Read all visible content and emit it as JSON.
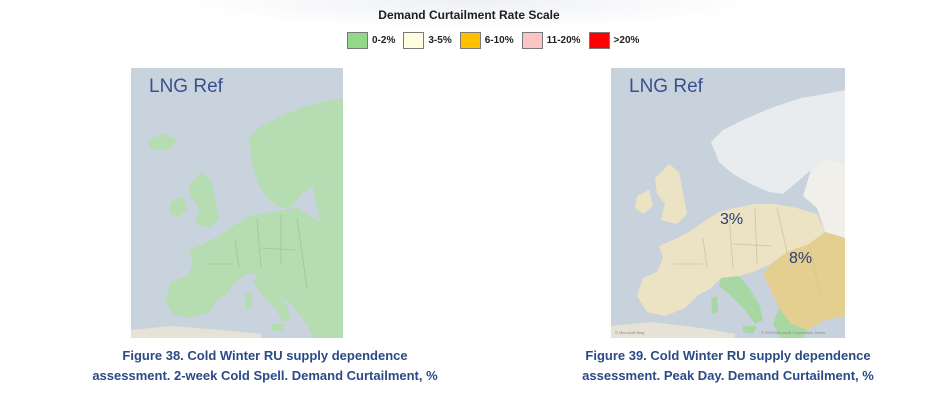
{
  "legend": {
    "title": "Demand Curtailment Rate Scale",
    "items": [
      {
        "label": "0-2%",
        "color": "#92d78a"
      },
      {
        "label": "3-5%",
        "color": "#fffde0"
      },
      {
        "label": "6-10%",
        "color": "#ffc000"
      },
      {
        "label": "11-20%",
        "color": "#fbc5c5"
      },
      {
        "label": ">20%",
        "color": "#ff0000"
      }
    ]
  },
  "maps": [
    {
      "title": "LNG Ref",
      "fill_color": "#b6dcb2",
      "sea_color": "#c5d0db",
      "caption_line1": "Figure 38. Cold Winter RU supply dependence",
      "caption_line2": "assessment. 2-week Cold Spell. Demand Curtailment, %"
    },
    {
      "title": "LNG Ref",
      "fill_color": "#ece2c4",
      "highlight_color": "#e4cf90",
      "label_west": "3%",
      "label_southeast": "8%",
      "attribution_left": "© Microsoft Bing",
      "attribution_right": "© 2024 Microsoft Corporation  Terms",
      "caption_line1": "Figure 39. Cold Winter RU supply dependence",
      "caption_line2": "assessment. Peak Day. Demand Curtailment, %"
    }
  ]
}
